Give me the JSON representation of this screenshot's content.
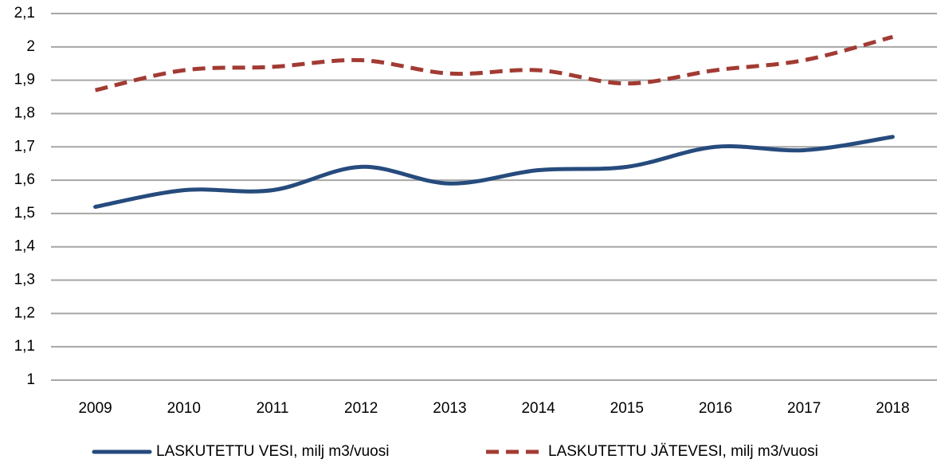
{
  "chart_data": {
    "type": "line",
    "categories": [
      "2009",
      "2010",
      "2011",
      "2012",
      "2013",
      "2014",
      "2015",
      "2016",
      "2017",
      "2018"
    ],
    "series": [
      {
        "name": "LASKUTETTU VESI, milj m3/vuosi",
        "color": "#264b7d",
        "dashed": false,
        "values": [
          1.52,
          1.57,
          1.57,
          1.64,
          1.59,
          1.63,
          1.64,
          1.7,
          1.69,
          1.73
        ]
      },
      {
        "name": "LASKUTETTU JÄTEVESI, milj m3/vuosi",
        "color": "#a23b33",
        "dashed": true,
        "values": [
          1.87,
          1.93,
          1.94,
          1.96,
          1.92,
          1.93,
          1.89,
          1.93,
          1.96,
          2.03
        ]
      }
    ],
    "ylim": [
      1,
      2.1
    ],
    "yticks": [
      1,
      {
        "value": 1.1,
        "label": "1,1"
      },
      {
        "value": 1.2,
        "label": "1,2"
      },
      {
        "value": 1.3,
        "label": "1,3"
      },
      {
        "value": 1.4,
        "label": "1,4"
      },
      {
        "value": 1.5,
        "label": "1,5"
      },
      {
        "value": 1.6,
        "label": "1,6"
      },
      {
        "value": 1.7,
        "label": "1,7"
      },
      {
        "value": 1.8,
        "label": "1,8"
      },
      {
        "value": 1.9,
        "label": "1,9"
      },
      2,
      {
        "value": 2.1,
        "label": "2,1"
      }
    ],
    "grid": true,
    "smooth": true,
    "legend": "bottom"
  }
}
